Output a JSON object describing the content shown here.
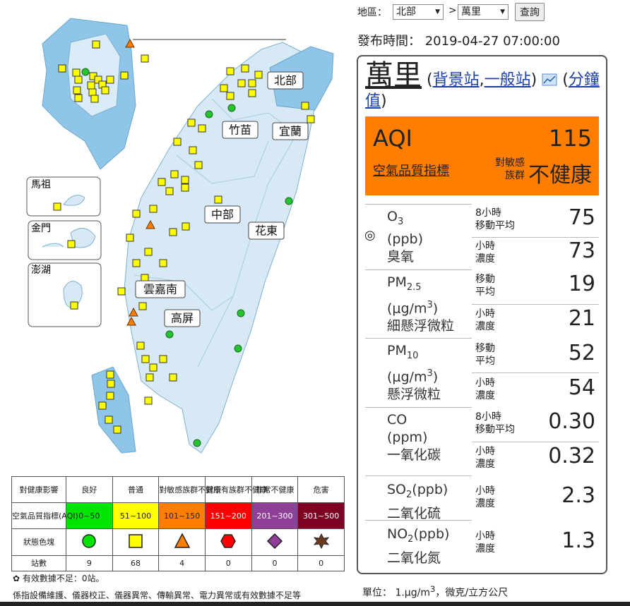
{
  "controls": {
    "region_label": "地區：",
    "region": "北部",
    "separator": ">",
    "station": "萬里",
    "button": "查詢"
  },
  "publish": {
    "label": "發布時間：",
    "time": "2019-04-27 07:00:00"
  },
  "station": {
    "name": "萬里",
    "open": "(",
    "link1": "背景站",
    "comma": ",",
    "link2": "一般站",
    "close": ")",
    "minute_open": "(",
    "minute_link": "分鐘值",
    "minute_close": ")"
  },
  "aqi": {
    "label": "AQI",
    "value": "115",
    "name": "空氣品質指標",
    "status_prefix": "對敏感族群",
    "status": "不健康"
  },
  "selector": "◎",
  "pollutants": [
    {
      "symbol": "O",
      "sub": "3",
      "unit": "(ppb)",
      "name": "臭氧",
      "readings": [
        {
          "period": [
            "8小時",
            "移動平均"
          ],
          "value": "75"
        },
        {
          "period": [
            "小時",
            "濃度"
          ],
          "value": "73"
        }
      ]
    },
    {
      "symbol": "PM",
      "sub": "2.5",
      "unit": "(μg/m",
      "unit_sup": "3",
      "unit_end": ")",
      "name": "細懸浮微粒",
      "readings": [
        {
          "period": [
            "移動",
            "平均"
          ],
          "value": "19"
        },
        {
          "period": [
            "小時",
            "濃度"
          ],
          "value": "21"
        }
      ]
    },
    {
      "symbol": "PM",
      "sub": "10",
      "unit": "(μg/m",
      "unit_sup": "3",
      "unit_end": ")",
      "name": "懸浮微粒",
      "readings": [
        {
          "period": [
            "移動",
            "平均"
          ],
          "value": "52"
        },
        {
          "period": [
            "小時",
            "濃度"
          ],
          "value": "54"
        }
      ]
    },
    {
      "symbol": "CO",
      "unit": "(ppm)",
      "name": "一氧化碳",
      "readings": [
        {
          "period": [
            "8小時",
            "移動平均"
          ],
          "value": "0.30"
        },
        {
          "period": [
            "小時",
            "濃度"
          ],
          "value": "0.32"
        }
      ]
    },
    {
      "symbol": "SO",
      "sub": "2",
      "unit": "(ppb)",
      "name": "二氧化硫",
      "readings": [
        {
          "period": [
            "小時",
            "濃度"
          ],
          "value": "2.3"
        }
      ]
    },
    {
      "symbol": "NO",
      "sub": "2",
      "unit": "(ppb)",
      "name": "二氧化氮",
      "readings": [
        {
          "period": [
            "小時",
            "濃度"
          ],
          "value": "1.3"
        }
      ]
    }
  ],
  "map": {
    "regions": [
      "北部",
      "竹苗",
      "宜蘭",
      "中部",
      "花東",
      "雲嘉南",
      "高屏"
    ],
    "islands": [
      "馬祖",
      "金門",
      "澎湖"
    ]
  },
  "legend": {
    "header": [
      "對健康影響",
      "良好",
      "普通",
      "對敏感族群不健康",
      "對所有族群不健康",
      "非常不健康",
      "危害"
    ],
    "range_label": "空氣品質指標(AQI)",
    "ranges": [
      "0~50",
      "51~100",
      "101~150",
      "151~200",
      "201~300",
      "301~500"
    ],
    "icon_label": "狀態色塊",
    "count_label": "站數",
    "counts": [
      "9",
      "68",
      "4",
      "0",
      "0",
      "0"
    ]
  },
  "notes": {
    "insufficient": "有效數據不足：0站。",
    "desc": "係指設備維護、儀器校正、儀器異常、傳輸異常、電力異常或有效數據不足等"
  },
  "units": {
    "label": "單位：",
    "pre": "1.μg/m",
    "sup": "3",
    "post": "，微克/立方公尺"
  }
}
